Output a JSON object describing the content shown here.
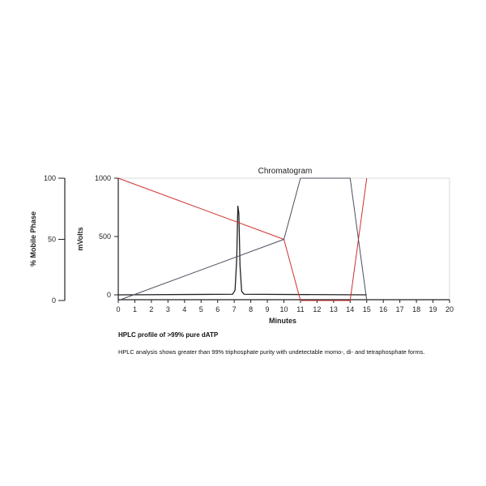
{
  "caption": {
    "title": "HPLC profile of >99% pure dATP",
    "text": "HPLC analysis shows greater than 99% triphosphate purity with undetectable momo-, di- and tetraphosphate forms."
  },
  "colors": {
    "signal": "#222222",
    "gradient_a": "#d0312d",
    "gradient_b": "#4a4f5e",
    "axis": "#222222"
  },
  "chart_data": {
    "type": "line",
    "title": "Chromatogram",
    "xlabel": "Minutes",
    "ylabel": "mVolts",
    "y2label": "% Mobile Phase",
    "xlim": [
      0,
      20
    ],
    "ylim": [
      -25,
      1000
    ],
    "y2lim": [
      0,
      100
    ],
    "x_ticks": [
      0,
      1,
      2,
      3,
      4,
      5,
      6,
      7,
      8,
      9,
      10,
      11,
      12,
      13,
      14,
      15,
      16,
      17,
      18,
      19,
      20
    ],
    "y_ticks": [
      0,
      500,
      1000
    ],
    "y2_ticks": [
      0,
      50,
      100
    ],
    "series": [
      {
        "axis": "mVolts",
        "x": [
          0,
          6.9,
          7.05,
          7.15,
          7.22,
          7.28,
          7.35,
          7.45,
          7.6,
          15
        ],
        "y": [
          0,
          5,
          40,
          300,
          760,
          700,
          250,
          30,
          5,
          0
        ]
      },
      {
        "axis": "% Mobile Phase",
        "x": [
          0,
          10,
          11,
          14,
          15
        ],
        "y": [
          100,
          50,
          0,
          0,
          100
        ]
      },
      {
        "axis": "% Mobile Phase",
        "x": [
          0,
          10,
          11,
          14,
          15
        ],
        "y": [
          0,
          50,
          100,
          100,
          0
        ]
      }
    ]
  }
}
